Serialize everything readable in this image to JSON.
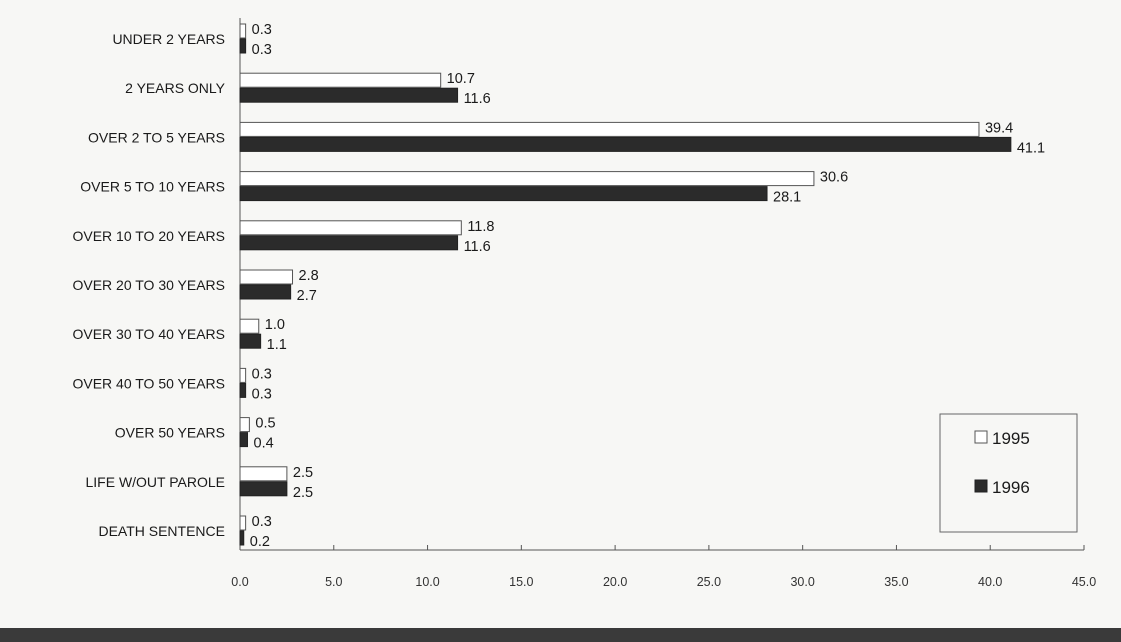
{
  "chart_data": {
    "type": "bar",
    "orientation": "horizontal",
    "categories": [
      "UNDER 2 YEARS",
      "2 YEARS ONLY",
      "OVER 2 TO 5 YEARS",
      "OVER 5 TO 10 YEARS",
      "OVER 10 TO 20 YEARS",
      "OVER 20 TO 30 YEARS",
      "OVER 30 TO 40 YEARS",
      "OVER 40 TO 50 YEARS",
      "OVER 50 YEARS",
      "LIFE W/OUT PAROLE",
      "DEATH SENTENCE"
    ],
    "series": [
      {
        "name": "1995",
        "color": "#ffffff",
        "values": [
          0.3,
          10.7,
          39.4,
          30.6,
          11.8,
          2.8,
          1.0,
          0.3,
          0.5,
          2.5,
          0.3
        ],
        "labels": [
          "0.3",
          "10.7",
          "39.4",
          "30.6",
          "11.8",
          "2.8",
          "1.0",
          "0.3",
          "0.5",
          "2.5",
          "0.3"
        ]
      },
      {
        "name": "1996",
        "color": "#2b2b2b",
        "values": [
          0.3,
          11.6,
          41.1,
          28.1,
          11.6,
          2.7,
          1.1,
          0.3,
          0.4,
          2.5,
          0.2
        ],
        "labels": [
          "0.3",
          "11.6",
          "41.1",
          "28.1",
          "11.6",
          "2.7",
          "1.1",
          "0.3",
          "0.4",
          "2.5",
          "0.2"
        ]
      }
    ],
    "xlim": [
      0,
      45
    ],
    "xticks": [
      "0.0",
      "5.0",
      "10.0",
      "15.0",
      "20.0",
      "25.0",
      "30.0",
      "35.0",
      "40.0",
      "45.0"
    ],
    "title": "",
    "xlabel": "",
    "ylabel": "",
    "grid": false,
    "legend": {
      "placement": "bottom-right",
      "entries": [
        "1995",
        "1996"
      ]
    }
  }
}
